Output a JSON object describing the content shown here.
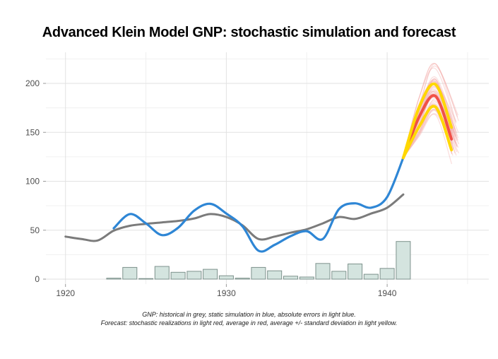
{
  "chart_data": {
    "type": "line",
    "title": "Advanced Klein Model GNP: stochastic simulation and forecast",
    "caption_line1": "GNP: historical in grey, static simulation in blue, absolute errors in light blue.",
    "caption_line2": "Forecast: stochastic realizations in light red, average in red, average +/- standard deviation in light yellow.",
    "x_axis": {
      "ticks": [
        1920,
        1930,
        1940
      ],
      "minor_ticks": [
        1925,
        1935,
        1945
      ],
      "range": [
        1918.8,
        1946.3
      ]
    },
    "y_axis": {
      "ticks": [
        0,
        50,
        100,
        150,
        200
      ],
      "minor_ticks": [
        25,
        75,
        125,
        175,
        225
      ],
      "range": [
        -5,
        231
      ]
    },
    "grid": {
      "major_color": "#e2e2e2",
      "minor_color": "#f0f0f0",
      "on": true
    },
    "legend_position": "none",
    "series": {
      "historical": {
        "label": "GNP historical",
        "color": "#7b7b7b",
        "years": [
          1920,
          1921,
          1922,
          1923,
          1924,
          1925,
          1926,
          1927,
          1928,
          1929,
          1930,
          1931,
          1932,
          1933,
          1934,
          1935,
          1936,
          1937,
          1938,
          1939,
          1940,
          1941
        ],
        "values": [
          43.5,
          41,
          39.5,
          49.5,
          54.5,
          56.5,
          58,
          59.5,
          62,
          66.5,
          63.5,
          55,
          41,
          43.5,
          47.5,
          51,
          57,
          63.5,
          61.5,
          67,
          73,
          86.5
        ]
      },
      "static_simulation": {
        "label": "static simulation",
        "color": "#2e86d5",
        "years": [
          1923,
          1924,
          1925,
          1926,
          1927,
          1928,
          1929,
          1930,
          1931,
          1932,
          1933,
          1934,
          1935,
          1936,
          1937,
          1938,
          1939,
          1940,
          1941
        ],
        "values": [
          52,
          66.5,
          57,
          45,
          52.5,
          70,
          77,
          67,
          54,
          29,
          35,
          44,
          49,
          41,
          71.5,
          77.5,
          73,
          84,
          124
        ]
      },
      "absolute_errors": {
        "label": "absolute errors",
        "fill": "#d4e4df",
        "stroke": "#7d928c",
        "years": [
          1923,
          1924,
          1925,
          1926,
          1927,
          1928,
          1929,
          1930,
          1931,
          1932,
          1933,
          1934,
          1935,
          1936,
          1937,
          1938,
          1939,
          1940,
          1941
        ],
        "values": [
          1,
          12,
          0.6,
          13,
          7,
          8,
          10,
          3.5,
          1,
          12,
          8.5,
          3,
          2.2,
          16,
          8,
          15.5,
          5,
          11,
          38.5
        ]
      },
      "forecast": {
        "years": [
          1941,
          1942,
          1943,
          1944
        ],
        "average": {
          "label": "stochastic average",
          "color": "#ef4238",
          "values": [
            124,
            166,
            187,
            143
          ]
        },
        "avg_plus_sd": {
          "label": "average + standard deviation",
          "color": "#ffd700",
          "values": [
            124,
            176,
            199,
            155
          ]
        },
        "avg_minus_sd": {
          "label": "average - standard deviation",
          "color": "#ffd700",
          "values": [
            124,
            156,
            176,
            132
          ]
        },
        "realizations": {
          "label": "stochastic realizations",
          "color": "#f3aeab",
          "count": 45,
          "envelope_upper": [
            124,
            186,
            220,
            168
          ],
          "envelope_lower": [
            124,
            140,
            162,
            116
          ]
        }
      }
    }
  }
}
